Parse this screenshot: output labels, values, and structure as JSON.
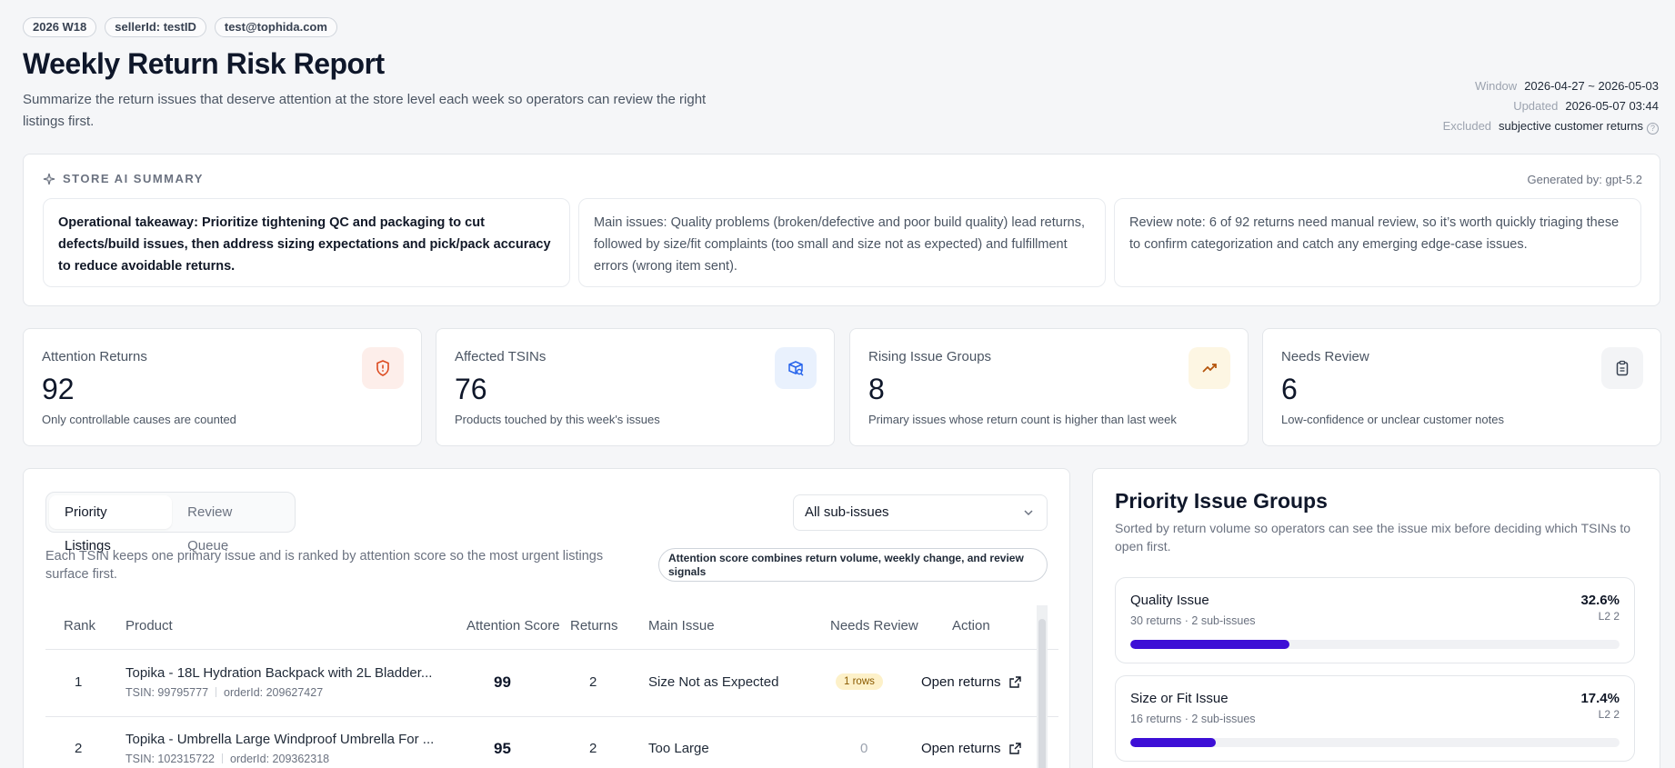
{
  "tags": [
    "2026 W18",
    "sellerId: testID",
    "test@tophida.com"
  ],
  "header": {
    "title": "Weekly Return Risk Report",
    "description": "Summarize the return issues that deserve attention at the store level each week so operators can review the right listings first."
  },
  "meta": {
    "window_label": "Window",
    "window_value": "2026-04-27 ~ 2026-05-03",
    "updated_label": "Updated",
    "updated_value": "2026-05-07 03:44",
    "excluded_label": "Excluded",
    "excluded_value": "subjective customer returns",
    "help_icon": "?"
  },
  "ai_summary": {
    "heading": "STORE AI SUMMARY",
    "generated_by": "Generated by: gpt-5.2",
    "takeaway": "Operational takeaway: Prioritize tightening QC and packaging to cut defects/build issues, then address sizing expectations and pick/pack accuracy to reduce avoidable returns.",
    "main_issues": "Main issues: Quality problems (broken/defective and poor build quality) lead returns, followed by size/fit complaints (too small and size not as expected) and fulfillment errors (wrong item sent).",
    "review_note": "Review note: 6 of 92 returns need manual review, so it’s worth quickly triaging these to confirm categorization and catch any emerging edge-case issues."
  },
  "kpis": [
    {
      "label": "Attention Returns",
      "value": "92",
      "sub": "Only controllable causes are counted",
      "icon": "shield-alert-icon",
      "color": "#dc4a1f"
    },
    {
      "label": "Affected TSINs",
      "value": "76",
      "sub": "Products touched by this week's issues",
      "icon": "package-search-icon",
      "color": "#2563eb"
    },
    {
      "label": "Rising Issue Groups",
      "value": "8",
      "sub": "Primary issues whose return count is higher than last week",
      "icon": "trending-up-icon",
      "color": "#b45309"
    },
    {
      "label": "Needs Review",
      "value": "6",
      "sub": "Low-confidence or unclear customer notes",
      "icon": "clipboard-icon",
      "color": "#374151"
    }
  ],
  "listings": {
    "tabs": [
      "Priority Listings",
      "Review Queue"
    ],
    "active_tab": "Priority Listings",
    "filter_value": "All sub-issues",
    "description": "Each TSIN keeps one primary issue and is ranked by attention score so the most urgent listings surface first.",
    "score_note": "Attention score combines return volume, weekly change, and review signals",
    "columns": [
      "Rank",
      "Product",
      "Attention Score",
      "Returns",
      "Main Issue",
      "Needs Review",
      "Action"
    ],
    "rows": [
      {
        "rank": "1",
        "product": "Topika - 18L Hydration Backpack with 2L Bladder...",
        "tsin": "TSIN: 99795777",
        "order": "orderId: 209627427",
        "score": "99",
        "returns": "2",
        "issue": "Size Not as Expected",
        "review": "1 rows",
        "action": "Open returns"
      },
      {
        "rank": "2",
        "product": "Topika - Umbrella Large Windproof Umbrella For ...",
        "tsin": "TSIN: 102315722",
        "order": "orderId: 209362318",
        "score": "95",
        "returns": "2",
        "issue": "Too Large",
        "review": "0",
        "action": "Open returns"
      }
    ]
  },
  "groups": {
    "title": "Priority Issue Groups",
    "description": "Sorted by return volume so operators can see the issue mix before deciding which TSINs to open first.",
    "items": [
      {
        "name": "Quality Issue",
        "meta": "30 returns · 2 sub-issues",
        "pct": "32.6%",
        "l2": "L2 2",
        "share": 0.326
      },
      {
        "name": "Size or Fit Issue",
        "meta": "16 returns · 2 sub-issues",
        "pct": "17.4%",
        "l2": "L2 2",
        "share": 0.174
      }
    ]
  },
  "colors": {
    "accent": "#3d0fd6",
    "badge_bg": "#fdf1c9"
  }
}
